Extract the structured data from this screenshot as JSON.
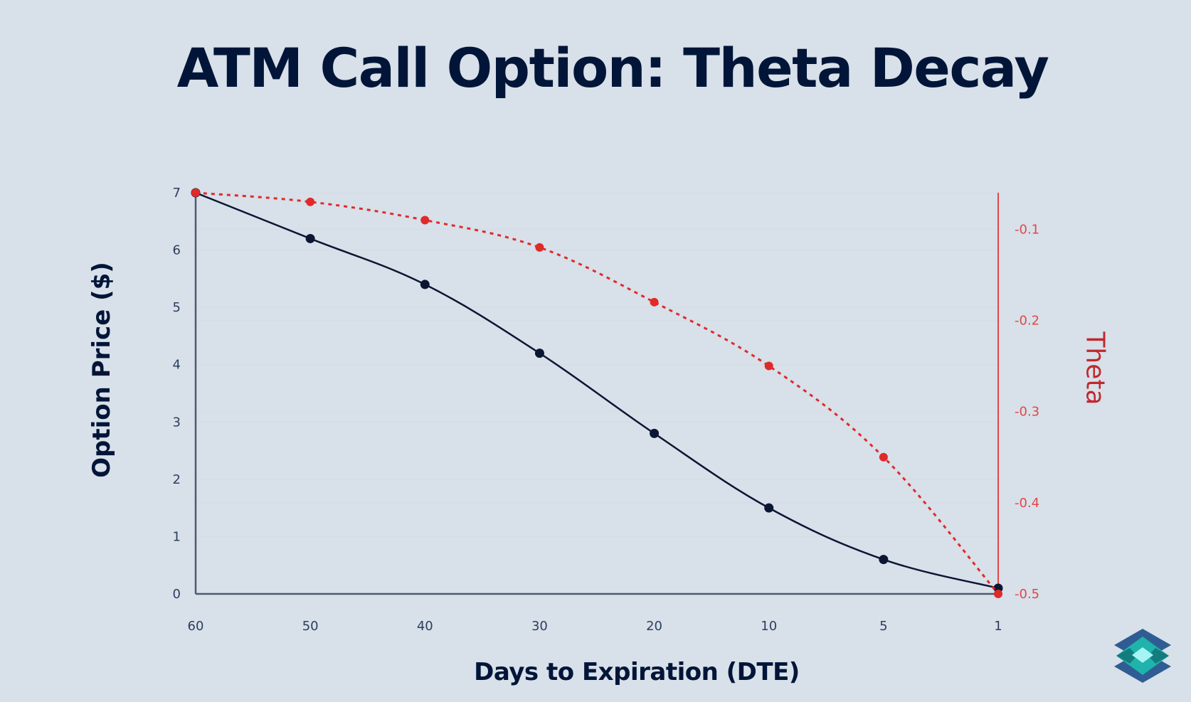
{
  "page": {
    "title": "ATM Call Option: Theta Decay",
    "background": "#d8e0e9",
    "logo": "layered-diamond-logo-icon"
  },
  "colors": {
    "price_line": "#0b1633",
    "theta_line": "#e02a2a",
    "theta_axis": "#e04848",
    "title": "#001538",
    "tick_text": "#2a3f5f",
    "gridline": "#d3dbe5",
    "axis_line": "#4b5a74",
    "logo_dark": "#2f5d93",
    "logo_teal": "#1fb3ab",
    "logo_deep": "#137d7d",
    "logo_light": "#a6f4f4"
  },
  "chart_data": {
    "type": "line",
    "title": "ATM Call Option: Theta Decay",
    "xlabel": "Days to Expiration (DTE)",
    "ylabel": "Option Price ($)",
    "y2label": "Theta",
    "categories": [
      "60",
      "50",
      "40",
      "30",
      "20",
      "10",
      "5",
      "1"
    ],
    "series": [
      {
        "name": "Option Price ($)",
        "axis": "left",
        "style": "solid",
        "marker": "circle",
        "values": [
          7.0,
          6.2,
          5.4,
          4.2,
          2.8,
          1.5,
          0.6,
          0.1
        ]
      },
      {
        "name": "Theta",
        "axis": "right",
        "style": "dotted",
        "marker": "circle",
        "values": [
          -0.06,
          -0.07,
          -0.09,
          -0.12,
          -0.18,
          -0.25,
          -0.35,
          -0.5
        ]
      }
    ],
    "ylim": [
      0,
      7
    ],
    "y_ticks": [
      "0",
      "1",
      "2",
      "3",
      "4",
      "5",
      "6",
      "7"
    ],
    "y2lim": [
      -0.5,
      -0.06
    ],
    "y2_ticks": [
      "-0.1",
      "-0.2",
      "-0.3",
      "-0.4",
      "-0.5"
    ],
    "grid": true,
    "legend": "none"
  }
}
